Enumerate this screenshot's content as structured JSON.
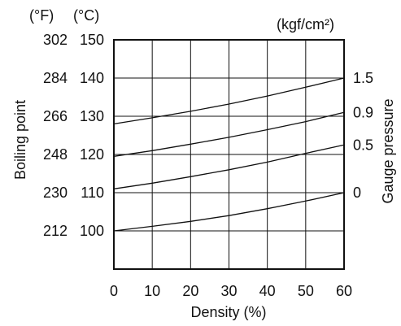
{
  "chart_data": {
    "type": "line",
    "title": "",
    "xlabel": "Density (%)",
    "ylabel": "Boiling point",
    "y2label": "Gauge pressure",
    "unit_f": "(°F)",
    "unit_c": "(°C)",
    "unit_pressure": "(kgf/cm²)",
    "xlim": [
      0,
      60
    ],
    "ylim": [
      90,
      150
    ],
    "grid": true,
    "x_ticks": [
      "0",
      "10",
      "20",
      "30",
      "40",
      "50",
      "60"
    ],
    "y_ticks_c": [
      "150",
      "140",
      "130",
      "120",
      "110",
      "100"
    ],
    "y_ticks_f": [
      "302",
      "284",
      "266",
      "248",
      "230",
      "212"
    ],
    "pressure_labels": [
      "1.5",
      "0.9",
      "0.5",
      "0"
    ],
    "x": [
      0,
      10,
      20,
      30,
      40,
      50,
      60
    ],
    "series": [
      {
        "pressure": "0",
        "values": [
          100.0,
          101.2,
          102.5,
          104.0,
          105.8,
          107.8,
          110.0
        ]
      },
      {
        "pressure": "0.5",
        "values": [
          111.0,
          112.5,
          114.2,
          116.0,
          118.0,
          120.3,
          122.5
        ]
      },
      {
        "pressure": "0.9",
        "values": [
          119.5,
          121.0,
          122.7,
          124.5,
          126.5,
          128.6,
          131.0
        ]
      },
      {
        "pressure": "1.5",
        "values": [
          128.0,
          129.6,
          131.3,
          133.2,
          135.3,
          137.6,
          140.0
        ]
      }
    ]
  }
}
